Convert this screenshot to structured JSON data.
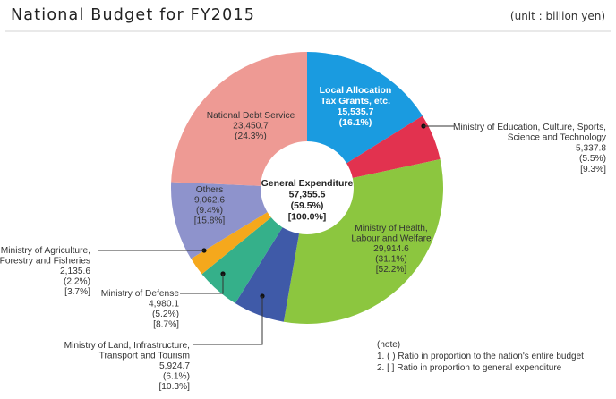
{
  "header": {
    "title": "National Budget for FY2015",
    "unit": "(unit : billion yen)"
  },
  "chart_data": {
    "type": "pie",
    "variant": "donut",
    "title": "National Budget for FY2015",
    "unit": "(unit : billion yen)",
    "start": "top, clockwise",
    "center": {
      "lines": [
        "General Expenditure",
        "57,355.5",
        "(59.5%)",
        "[100.0%]"
      ],
      "value": 57355.5,
      "share_total": 59.5,
      "share_general": 100.0
    },
    "slices": [
      {
        "name": "Local Allocation Tax Grants, etc.",
        "lines": [
          "Local Allocation",
          "Tax Grants, etc.",
          "15,535.7",
          "(16.1%)"
        ],
        "value": 15535.7,
        "share_total": 16.1,
        "color": "#1a9be0"
      },
      {
        "name": "Ministry of Education, Culture, Sports, Science and Technology",
        "lines": [
          "Ministry of Education, Culture, Sports,",
          "Science and Technology",
          "5,337.8",
          "(5.5%)",
          "[9.3%]"
        ],
        "value": 5337.8,
        "share_total": 5.5,
        "share_general": 9.3,
        "color": "#e2324f"
      },
      {
        "name": "Ministry of Health, Labour and Welfare",
        "lines": [
          "Ministry of Health,",
          "Labour and Welfare",
          "29,914.6",
          "(31.1%)",
          "[52.2%]"
        ],
        "value": 29914.6,
        "share_total": 31.1,
        "share_general": 52.2,
        "color": "#8cc63f"
      },
      {
        "name": "Ministry of Land, Infrastructure, Transport and Tourism",
        "lines": [
          "Ministry of Land, Infrastructure,",
          "Transport and Tourism",
          "5,924.7",
          "(6.1%)",
          "[10.3%]"
        ],
        "value": 5924.7,
        "share_total": 6.1,
        "share_general": 10.3,
        "color": "#3f5aa8"
      },
      {
        "name": "Ministry of Defense",
        "lines": [
          "Ministry of Defense",
          "4,980.1",
          "(5.2%)",
          "[8.7%]"
        ],
        "value": 4980.1,
        "share_total": 5.2,
        "share_general": 8.7,
        "color": "#35b08a"
      },
      {
        "name": "Ministry of Agriculture, Forestry and Fisheries",
        "lines": [
          "Ministry of Agriculture,",
          "Forestry and Fisheries",
          "2,135.6",
          "(2.2%)",
          "[3.7%]"
        ],
        "value": 2135.6,
        "share_total": 2.2,
        "share_general": 3.7,
        "color": "#f5a81c"
      },
      {
        "name": "Others",
        "lines": [
          "Others",
          "9,062.6",
          "(9.4%)",
          "[15.8%]"
        ],
        "value": 9062.6,
        "share_total": 9.4,
        "share_general": 15.8,
        "color": "#8e93cc"
      },
      {
        "name": "National Debt Service",
        "lines": [
          "National Debt Service",
          "23,450.7",
          "(24.3%)"
        ],
        "value": 23450.7,
        "share_total": 24.3,
        "color": "#ee9a94"
      }
    ],
    "legend": "none",
    "notes": [
      "(note)",
      "1. (   ) Ratio in proportion to the nation's entire budget",
      "2. [   ] Ratio in proportion to general expenditure"
    ]
  }
}
